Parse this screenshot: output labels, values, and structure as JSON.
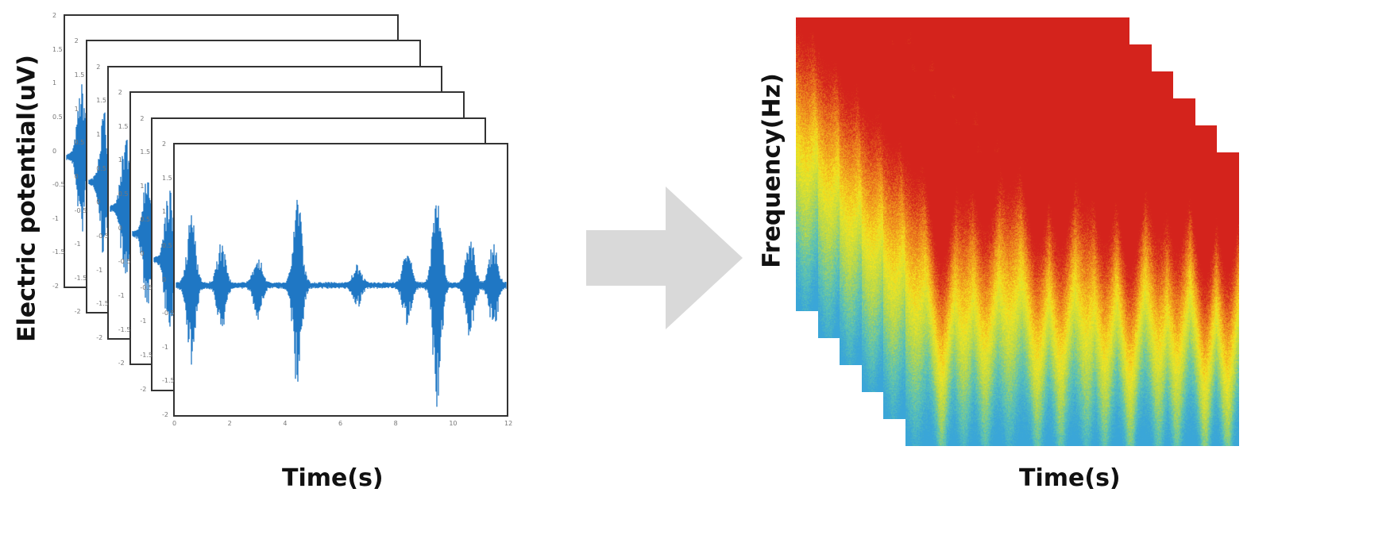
{
  "left_panel": {
    "ylabel": "Electric potential(uV)",
    "xlabel": "Time(s)",
    "frame_count": 6,
    "x_ticks": [
      "0",
      "2",
      "4",
      "6",
      "8",
      "10",
      "12"
    ],
    "y_ticks": [
      "2",
      "1.5",
      "1",
      "0.5",
      "0",
      "-0.5",
      "-1",
      "-1.5",
      "-2"
    ],
    "signal_color": "#1f77c4"
  },
  "arrow": {
    "color": "#d9d9d9",
    "icon": "right-arrow-icon"
  },
  "right_panel": {
    "ylabel": "Frequency(Hz)",
    "xlabel": "Time(s)",
    "layer_count": 6,
    "colormap": [
      "#d4231c",
      "#f08c1e",
      "#f5e61e",
      "#b9d84a",
      "#5cc3b4",
      "#3aa6d8"
    ]
  }
}
